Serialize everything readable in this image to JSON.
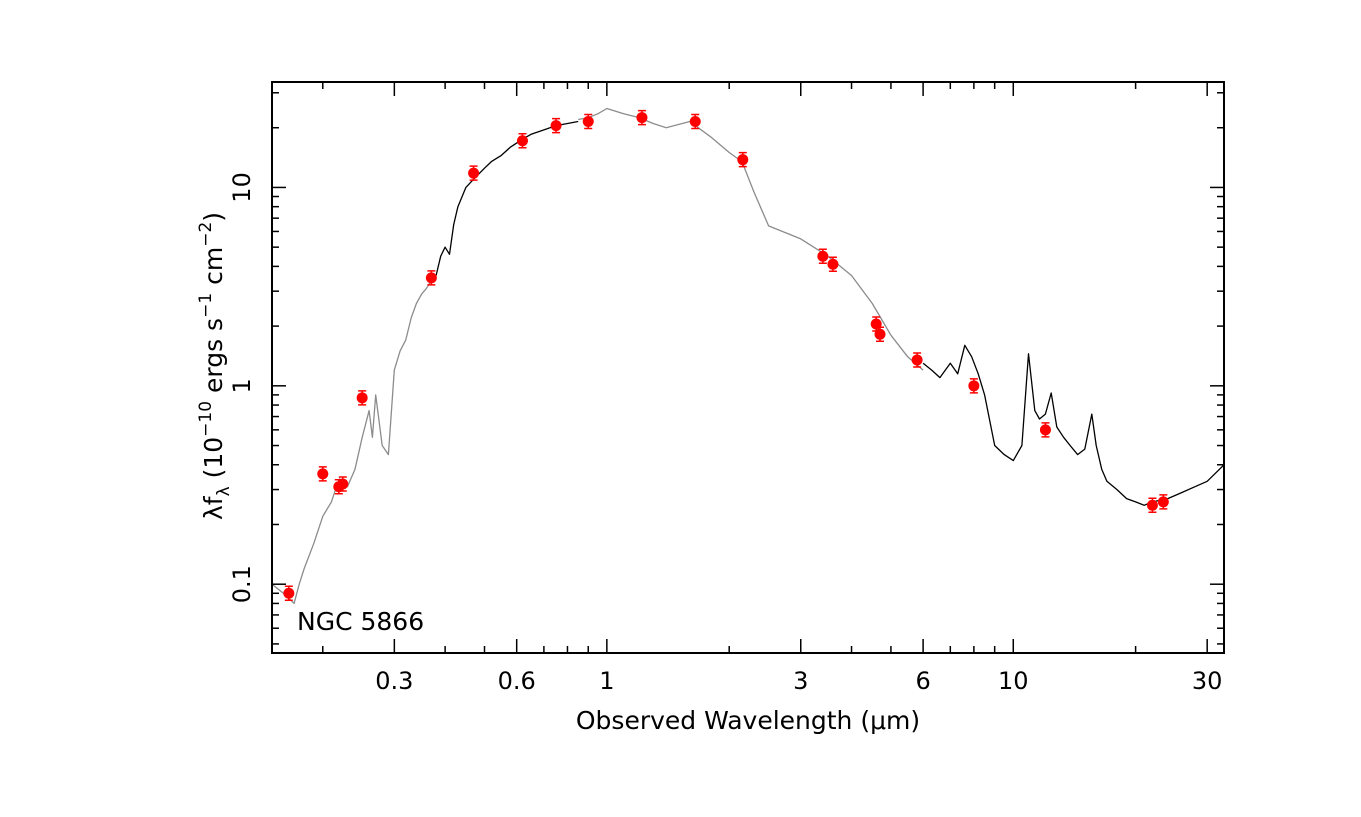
{
  "chart_data": {
    "type": "scatter",
    "title": "",
    "annotation": "NGC 5866",
    "xlabel": "Observed Wavelength (μm)",
    "ylabel": {
      "parts": [
        "λf",
        "λ",
        " (10",
        "−10",
        " ergs s",
        "−1",
        " cm",
        "−2",
        ")"
      ]
    },
    "x_scale": "log",
    "y_scale": "log",
    "xlim": [
      0.15,
      33
    ],
    "ylim": [
      0.045,
      34
    ],
    "x_ticks": [
      {
        "value": 0.3,
        "label": "0.3"
      },
      {
        "value": 0.6,
        "label": "0.6"
      },
      {
        "value": 1,
        "label": "1"
      },
      {
        "value": 3,
        "label": "3"
      },
      {
        "value": 6,
        "label": "6"
      },
      {
        "value": 10,
        "label": "10"
      },
      {
        "value": 30,
        "label": "30"
      }
    ],
    "y_ticks": [
      {
        "value": 0.1,
        "label": "0.1"
      },
      {
        "value": 1,
        "label": "1"
      },
      {
        "value": 10,
        "label": "10"
      }
    ],
    "grid": false,
    "legend": "none",
    "colors": {
      "photometry": "#ff0000",
      "observed_spectrum": "#000000",
      "model_spectrum": "#8c8c8c",
      "axes": "#000000"
    },
    "series": [
      {
        "type": "line",
        "color": "#8c8c8c",
        "x": [
          0.15,
          0.16,
          0.17,
          0.175,
          0.18,
          0.19,
          0.2,
          0.21,
          0.215,
          0.22,
          0.23,
          0.24,
          0.25,
          0.26,
          0.265,
          0.27,
          0.28,
          0.29,
          0.3,
          0.31,
          0.32,
          0.33,
          0.34,
          0.35,
          0.36,
          0.37,
          0.38
        ],
        "y": [
          0.1,
          0.09,
          0.08,
          0.1,
          0.12,
          0.16,
          0.22,
          0.26,
          0.3,
          0.34,
          0.31,
          0.38,
          0.55,
          0.75,
          0.55,
          0.9,
          0.5,
          0.45,
          1.2,
          1.5,
          1.7,
          2.2,
          2.6,
          2.9,
          3.1,
          3.4,
          3.6
        ]
      },
      {
        "type": "line",
        "color": "#000000",
        "x": [
          0.38,
          0.39,
          0.4,
          0.41,
          0.42,
          0.43,
          0.45,
          0.47,
          0.5,
          0.52,
          0.55,
          0.58,
          0.62,
          0.65,
          0.7,
          0.75,
          0.8,
          0.85
        ],
        "y": [
          3.6,
          4.5,
          5.0,
          4.6,
          6.5,
          8.0,
          10.0,
          11.0,
          12.5,
          13.5,
          14.5,
          16.0,
          17.5,
          18.5,
          19.5,
          20.5,
          21.0,
          21.5
        ]
      },
      {
        "type": "line",
        "color": "#8c8c8c",
        "x": [
          0.85,
          0.9,
          0.95,
          1.0,
          1.1,
          1.2,
          1.3,
          1.4,
          1.6,
          1.8,
          2.0,
          2.15,
          2.3,
          2.5,
          3.0,
          3.5,
          4.0,
          4.5,
          5.0,
          5.5,
          6.0
        ],
        "y": [
          22.0,
          22.5,
          23.5,
          25.0,
          23.5,
          22.5,
          21.0,
          20.0,
          21.5,
          18.0,
          15.0,
          13.5,
          9.5,
          6.4,
          5.5,
          4.5,
          3.6,
          2.6,
          1.8,
          1.4,
          1.2
        ]
      },
      {
        "type": "line",
        "color": "#000000",
        "x": [
          6.0,
          6.3,
          6.6,
          7.0,
          7.3,
          7.6,
          7.9,
          8.2,
          8.5,
          9.0,
          9.5,
          10.0,
          10.5,
          10.9,
          11.3,
          11.6,
          12.0,
          12.4,
          12.8,
          13.3,
          13.8,
          14.4,
          15.0,
          15.6,
          16.0,
          16.5,
          17.0,
          18.0,
          19.0,
          20.0,
          21.0,
          22.0,
          24.0,
          26.0,
          28.0,
          30.0,
          33.0
        ],
        "y": [
          1.3,
          1.2,
          1.1,
          1.3,
          1.15,
          1.6,
          1.4,
          1.15,
          0.9,
          0.5,
          0.45,
          0.42,
          0.5,
          1.45,
          0.75,
          0.68,
          0.72,
          0.92,
          0.62,
          0.55,
          0.5,
          0.45,
          0.48,
          0.72,
          0.5,
          0.38,
          0.33,
          0.3,
          0.27,
          0.26,
          0.25,
          0.26,
          0.27,
          0.29,
          0.31,
          0.33,
          0.4
        ]
      }
    ],
    "points": [
      {
        "x": 0.165,
        "y": 0.09
      },
      {
        "x": 0.2,
        "y": 0.36
      },
      {
        "x": 0.219,
        "y": 0.31
      },
      {
        "x": 0.224,
        "y": 0.32
      },
      {
        "x": 0.25,
        "y": 0.87
      },
      {
        "x": 0.37,
        "y": 3.5
      },
      {
        "x": 0.47,
        "y": 11.8
      },
      {
        "x": 0.62,
        "y": 17.2
      },
      {
        "x": 0.75,
        "y": 20.5
      },
      {
        "x": 0.9,
        "y": 21.5
      },
      {
        "x": 1.22,
        "y": 22.5
      },
      {
        "x": 1.65,
        "y": 21.5
      },
      {
        "x": 2.16,
        "y": 13.8
      },
      {
        "x": 3.4,
        "y": 4.5
      },
      {
        "x": 3.6,
        "y": 4.1
      },
      {
        "x": 4.6,
        "y": 2.05
      },
      {
        "x": 4.7,
        "y": 1.82
      },
      {
        "x": 5.8,
        "y": 1.35
      },
      {
        "x": 8.0,
        "y": 1.0
      },
      {
        "x": 12.0,
        "y": 0.6
      },
      {
        "x": 22.0,
        "y": 0.25
      },
      {
        "x": 23.4,
        "y": 0.26
      }
    ]
  }
}
